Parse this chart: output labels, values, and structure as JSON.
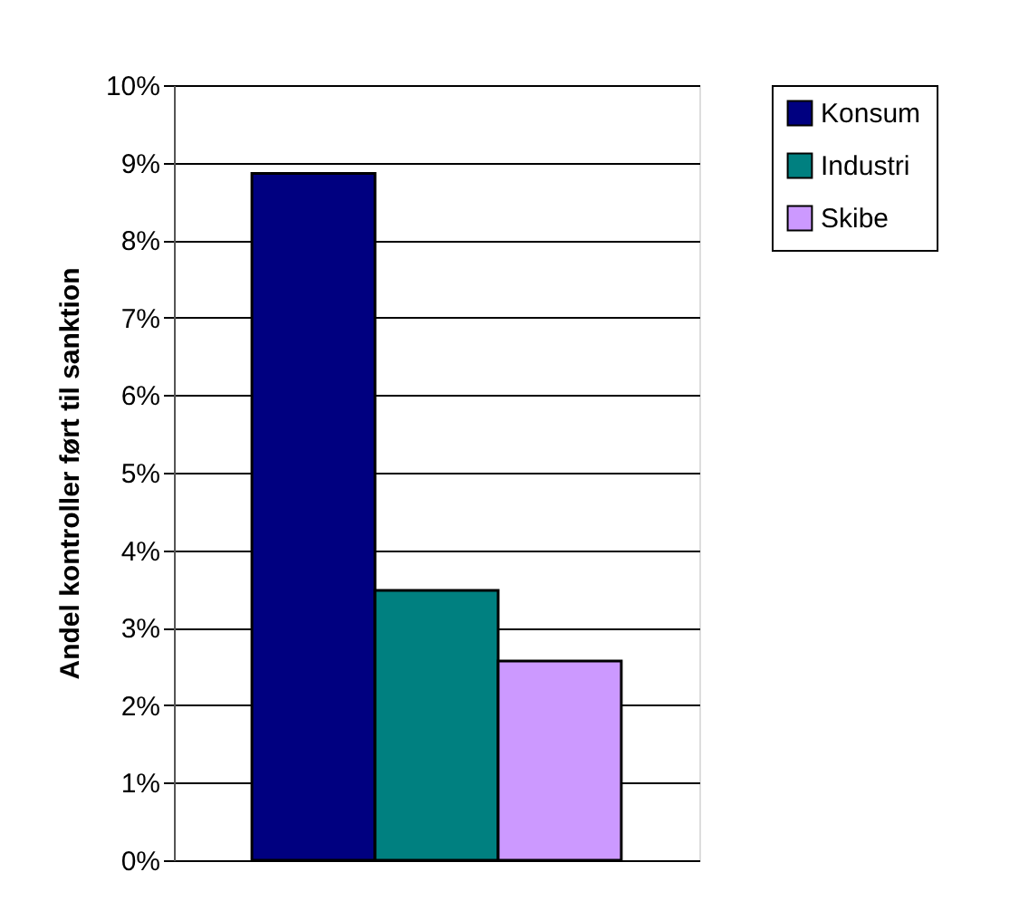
{
  "chart_data": {
    "type": "bar",
    "ylabel": "Andel kontroller ført til sanktion",
    "categories": [
      null
    ],
    "series": [
      {
        "name": "Konsum",
        "color": "#000080",
        "values": [
          8.86
        ]
      },
      {
        "name": "Industri",
        "color": "#008080",
        "values": [
          3.48
        ]
      },
      {
        "name": "Skibe",
        "color": "#cc99ff",
        "values": [
          2.57
        ]
      }
    ],
    "ylim": [
      0,
      10
    ],
    "yticks": [
      {
        "value": 0,
        "label": "0%"
      },
      {
        "value": 1,
        "label": "1%"
      },
      {
        "value": 2,
        "label": "2%"
      },
      {
        "value": 3,
        "label": "3%"
      },
      {
        "value": 4,
        "label": "4%"
      },
      {
        "value": 5,
        "label": "5%"
      },
      {
        "value": 6,
        "label": "6%"
      },
      {
        "value": 7,
        "label": "7%"
      },
      {
        "value": 8,
        "label": "8%"
      },
      {
        "value": 9,
        "label": "9%"
      },
      {
        "value": 10,
        "label": "10%"
      }
    ],
    "grid": "y",
    "legend": "right"
  }
}
